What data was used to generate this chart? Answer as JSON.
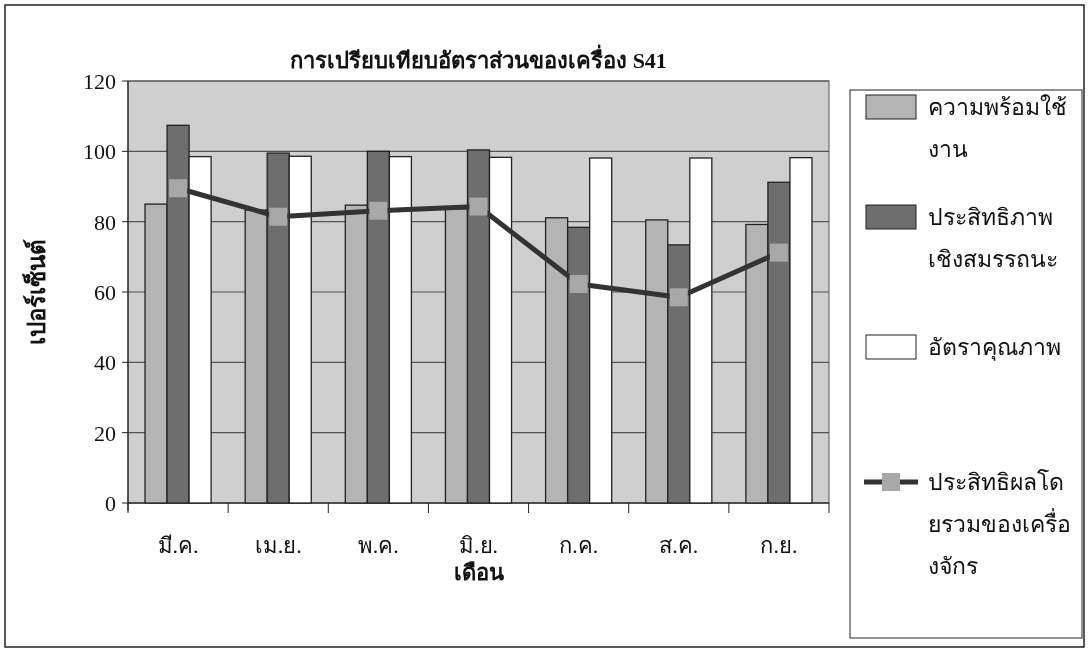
{
  "chart_data": {
    "type": "bar",
    "title": "การเปรียบเทียบอัตราส่วนของเครื่อง S41",
    "xlabel": "เดือน",
    "ylabel": "เปอร์เซ็นต์",
    "categories": [
      "มี.ค.",
      "เม.ย.",
      "พ.ค.",
      "มิ.ย.",
      "ก.ค.",
      "ส.ค.",
      "ก.ย."
    ],
    "series": [
      {
        "name": "ความพร้อมใช้งาน",
        "color": "#b4b4b4",
        "values": [
          85,
          83.3,
          84.7,
          83.7,
          81.1,
          80.5,
          79.2
        ]
      },
      {
        "name": "ประสิทธิภาพเชิงสมรรถนะ",
        "color": "#6e6e6e",
        "values": [
          107.4,
          99.5,
          100,
          100.4,
          78.4,
          73.4,
          91.2
        ]
      },
      {
        "name": "อัตราคุณภาพ",
        "color": "#ffffff",
        "values": [
          98.5,
          98.6,
          98.5,
          98.3,
          98.1,
          98.1,
          98.2
        ]
      },
      {
        "name": "ประสิทธิผลโดยรวมของเครื่องจักร",
        "type": "line",
        "color": "#333333",
        "values": [
          89.5,
          81.4,
          83.1,
          84.3,
          62.3,
          58.5,
          71.2
        ]
      }
    ],
    "ylim": [
      0,
      120
    ],
    "yticks": [
      0,
      20,
      40,
      60,
      80,
      100,
      120
    ],
    "grid": "y",
    "legend": "right",
    "marker": "square"
  }
}
